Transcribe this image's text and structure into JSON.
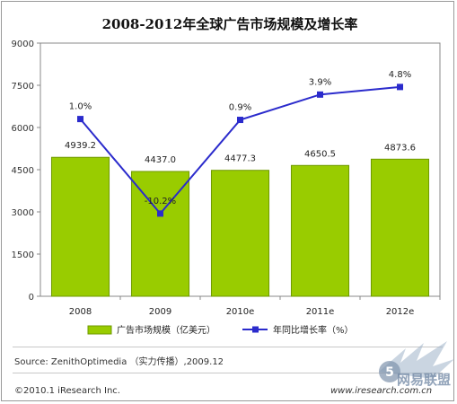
{
  "chart_data": {
    "type": "bar+line",
    "title": "2008-2012年全球广告市场规模及增长率",
    "categories": [
      "2008",
      "2009",
      "2010e",
      "2011e",
      "2012e"
    ],
    "series": [
      {
        "name": "广告市场规模（亿美元）",
        "type": "bar",
        "axis": "left",
        "values": [
          4939.2,
          4437.0,
          4477.3,
          4650.5,
          4873.6
        ],
        "labels": [
          "4939.2",
          "4437.0",
          "4477.3",
          "4650.5",
          "4873.6"
        ],
        "color": "#99cc00"
      },
      {
        "name": "年同比增长率（%）",
        "type": "line",
        "axis": "right-hidden",
        "values": [
          1.0,
          -10.2,
          0.9,
          3.9,
          4.8
        ],
        "labels": [
          "1.0%",
          "-10.2%",
          "0.9%",
          "3.9%",
          "4.8%"
        ],
        "color": "#2b2bcc"
      }
    ],
    "y_ticks": [
      "0",
      "1500",
      "3000",
      "4500",
      "6000",
      "7500",
      "9000"
    ],
    "ylim": [
      0,
      9000
    ],
    "line_ylim": [
      -20,
      10
    ],
    "grid": false,
    "legend_position": "bottom"
  },
  "source": "Source: ZenithOptimedia （实力传播）,2009.12",
  "copyright": "©2010.1 iResearch Inc.",
  "website": "www.iresearch.com.cn",
  "watermark_text": "5 网易联盟"
}
